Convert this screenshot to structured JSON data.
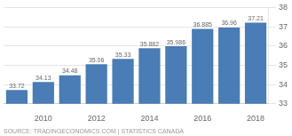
{
  "chart_data": {
    "type": "bar",
    "categories": [
      null,
      "2010",
      null,
      "2012",
      null,
      "2014",
      null,
      "2016",
      null,
      "2018"
    ],
    "values": [
      33.72,
      34.13,
      34.48,
      35.06,
      35.33,
      35.882,
      35.986,
      36.885,
      36.96,
      37.21
    ],
    "color": "#4a7cb5",
    "ylim": [
      33,
      38
    ],
    "yticks": [
      33,
      34,
      35,
      36,
      37,
      38
    ],
    "grid": true,
    "data_labels": true,
    "annotations": [
      "SOURCE: TRADINGECONOMICS.COM | STATISTICS CANADA"
    ]
  }
}
